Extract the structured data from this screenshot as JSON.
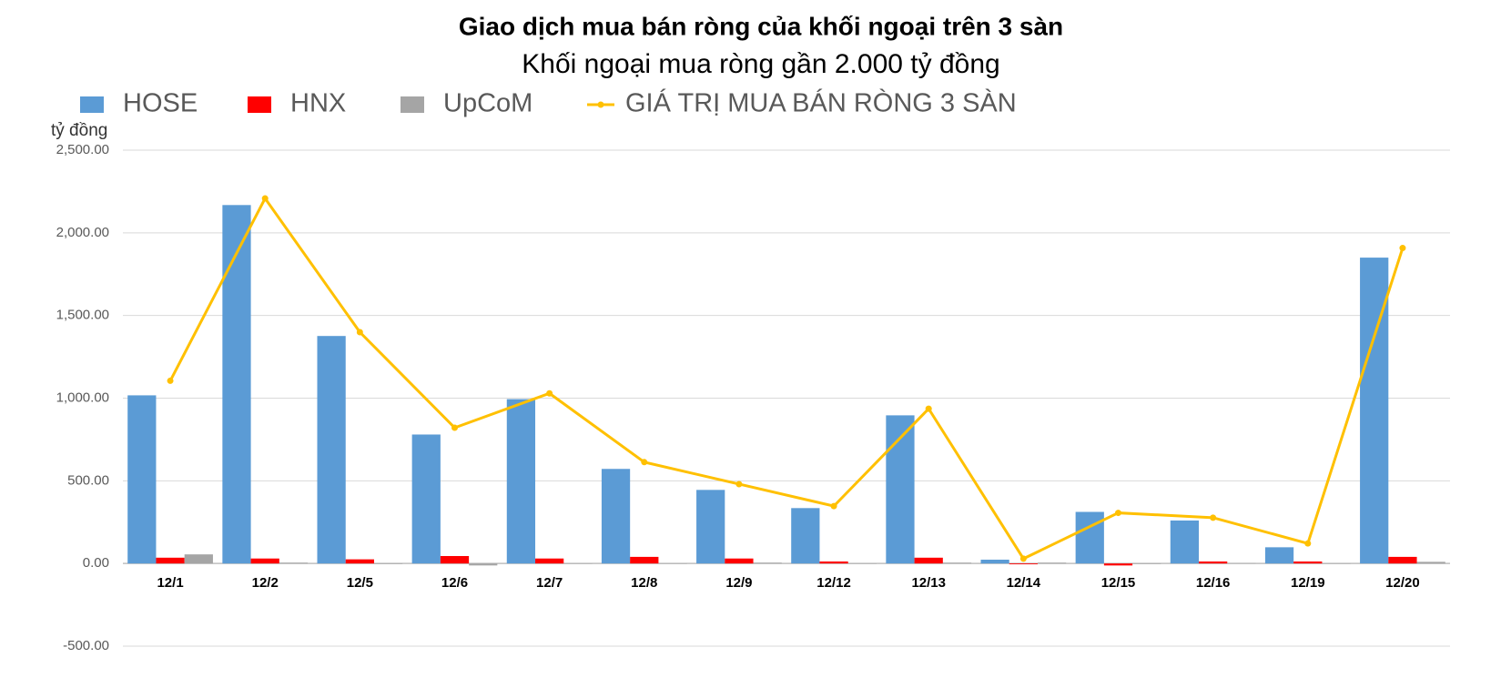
{
  "chart_data": {
    "type": "bar",
    "title": "Giao dịch mua bán ròng của khối ngoại trên 3 sàn",
    "subtitle": "Khối ngoại mua ròng gần 2.000 tỷ đồng",
    "y_label": "tỷ đồng",
    "categories": [
      "12/1",
      "12/2",
      "12/5",
      "12/6",
      "12/7",
      "12/8",
      "12/9",
      "12/12",
      "12/13",
      "12/14",
      "12/15",
      "12/16",
      "12/19",
      "12/20"
    ],
    "series": [
      {
        "name": "HOSE",
        "type": "bar",
        "color": "#5b9bd5",
        "values": [
          1017,
          2168,
          1376,
          780,
          994,
          572,
          445,
          335,
          896,
          23,
          312,
          260,
          98,
          1850
        ]
      },
      {
        "name": "HNX",
        "type": "bar",
        "color": "#ff0000",
        "values": [
          35,
          30,
          25,
          45,
          30,
          40,
          30,
          12,
          35,
          -5,
          -12,
          12,
          12,
          40
        ]
      },
      {
        "name": "UpCoM",
        "type": "bar",
        "color": "#a5a5a5",
        "values": [
          55,
          5,
          -3,
          -12,
          -2,
          -2,
          5,
          -2,
          5,
          5,
          -3,
          2,
          -2,
          10
        ]
      },
      {
        "name": "GIÁ TRỊ MUA BÁN RÒNG 3 SÀN",
        "type": "line",
        "color": "#ffc000",
        "values": [
          1105,
          2208,
          1399,
          821,
          1029,
          613,
          480,
          347,
          936,
          29,
          306,
          277,
          121,
          1908
        ]
      }
    ],
    "ylim": [
      -500,
      2500
    ],
    "yticks": [
      {
        "value": -500,
        "label": "-500.00"
      },
      {
        "value": 0,
        "label": "0.00"
      },
      {
        "value": 500,
        "label": "500.00"
      },
      {
        "value": 1000,
        "label": "1,000.00"
      },
      {
        "value": 1500,
        "label": "1,500.00"
      },
      {
        "value": 2000,
        "label": "2,000.00"
      },
      {
        "value": 2500,
        "label": "2,500.00"
      }
    ],
    "grid": true,
    "legend": "top"
  }
}
